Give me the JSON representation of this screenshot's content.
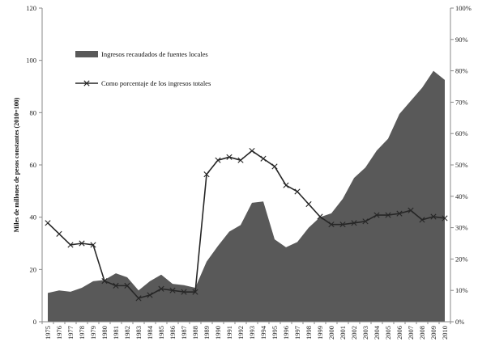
{
  "chart_data": {
    "type": "area",
    "ylabel": "Miles de millones de pesos constantes (2010=100)",
    "ylim": [
      0,
      120
    ],
    "y_ticks": [
      "0",
      "20",
      "40",
      "60",
      "80",
      "100",
      "120"
    ],
    "y2lim": [
      0,
      100
    ],
    "y2_ticks": [
      "0%",
      "10%",
      "20%",
      "30%",
      "40%",
      "50%",
      "60%",
      "70%",
      "80%",
      "90%",
      "100%"
    ],
    "grid": false,
    "legend_position": "top-left",
    "categories": [
      "1975",
      "1976",
      "1977",
      "1978",
      "1979",
      "1980",
      "1981",
      "1982",
      "1983",
      "1984",
      "1985",
      "1986",
      "1987",
      "1988",
      "1989",
      "1990",
      "1991",
      "1992",
      "1993",
      "1994",
      "1995",
      "1996",
      "1997",
      "1998",
      "1999",
      "2000",
      "2001",
      "2002",
      "2003",
      "2004",
      "2005",
      "2006",
      "2007",
      "2008",
      "2009",
      "2010"
    ],
    "series": [
      {
        "name": "Ingresos recaudados de fuentes locales",
        "type": "area",
        "axis": "left",
        "color": "#595959",
        "values": [
          11,
          12,
          11.5,
          13,
          15.5,
          16,
          18.5,
          17,
          12,
          15.5,
          18,
          14.5,
          14,
          13,
          23,
          29,
          34.5,
          37,
          45.5,
          46,
          31.5,
          28.5,
          30.5,
          36,
          40,
          41.5,
          47,
          55,
          59,
          65.5,
          70,
          79.5,
          84.5,
          89.5,
          96,
          92.5
        ]
      },
      {
        "name": "Como porcentaje de los ingresos totales",
        "type": "line",
        "axis": "right",
        "unit": "%",
        "color": "#262626",
        "values": [
          31.5,
          28,
          24.5,
          25,
          24.5,
          13,
          11.5,
          11.5,
          7.5,
          8.5,
          10.5,
          10,
          9.5,
          9.5,
          47,
          51.5,
          52.5,
          51.5,
          54.5,
          52,
          49.5,
          43.5,
          41.5,
          37.5,
          33.5,
          31,
          31,
          31.5,
          32,
          34,
          34,
          34.5,
          35.5,
          32.5,
          33.5,
          33
        ]
      }
    ]
  }
}
